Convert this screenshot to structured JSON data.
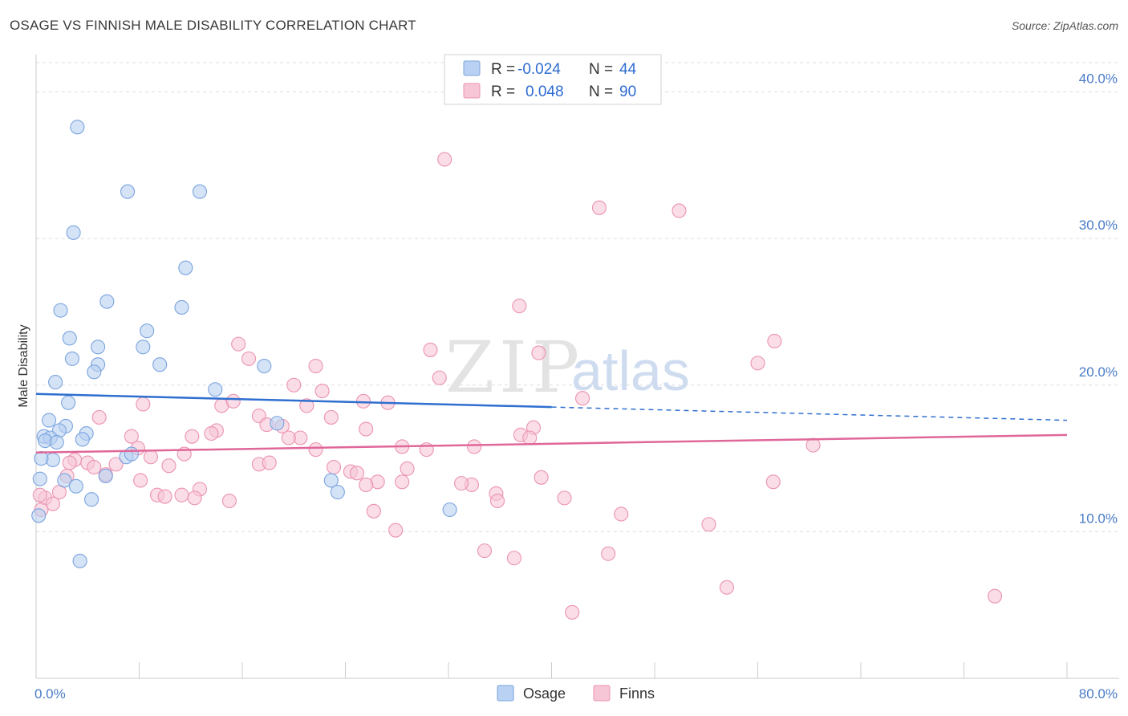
{
  "header": {
    "title": "OSAGE VS FINNISH MALE DISABILITY CORRELATION CHART",
    "source": "Source: ZipAtlas.com"
  },
  "watermark": {
    "zip": "ZIP",
    "atlas": "atlas"
  },
  "legend_box": {
    "rows": [
      {
        "r_label": "R =",
        "r_value": "-0.024",
        "n_label": "N =",
        "n_value": "44"
      },
      {
        "r_label": "R =",
        "r_value": "0.048",
        "n_label": "N =",
        "n_value": "90"
      }
    ]
  },
  "colors": {
    "osage_fill": "#b9d1f2",
    "osage_stroke": "#7aa4de",
    "osage_line": "#2f6fcf",
    "finns_fill": "#f7c6d6",
    "finns_stroke": "#eb93b1",
    "finns_line": "#e0679a",
    "tick_label": "#4a7cc7",
    "grid": "#dddddd"
  },
  "chart_data": {
    "type": "scatter",
    "title": "OSAGE VS FINNISH MALE DISABILITY CORRELATION CHART",
    "xlabel": "",
    "ylabel": "Male Disability",
    "xlim": [
      0,
      80
    ],
    "ylim": [
      0,
      42
    ],
    "x_tick_labels": [
      "0.0%",
      "80.0%"
    ],
    "y_ticks": [
      10,
      20,
      30,
      40
    ],
    "y_tick_labels": [
      "10.0%",
      "20.0%",
      "30.0%",
      "40.0%"
    ],
    "legend": "bottom-center",
    "grid": true,
    "series": [
      {
        "name": "Osage",
        "r": -0.024,
        "n": 44,
        "trend": {
          "x0": 0,
          "y0": 19.4,
          "x1": 40,
          "y1": 18.5,
          "dash_to_x": 80,
          "dash_to_y": 17.6
        },
        "points": [
          [
            3.2,
            37.6
          ],
          [
            7.1,
            33.2
          ],
          [
            12.7,
            33.2
          ],
          [
            2.9,
            30.4
          ],
          [
            11.6,
            28.0
          ],
          [
            5.5,
            25.7
          ],
          [
            11.3,
            25.3
          ],
          [
            1.9,
            25.1
          ],
          [
            8.6,
            23.7
          ],
          [
            2.6,
            23.2
          ],
          [
            4.8,
            22.6
          ],
          [
            8.3,
            22.6
          ],
          [
            2.8,
            21.8
          ],
          [
            4.8,
            21.4
          ],
          [
            9.6,
            21.4
          ],
          [
            4.5,
            20.9
          ],
          [
            17.7,
            21.3
          ],
          [
            1.5,
            20.2
          ],
          [
            13.9,
            19.7
          ],
          [
            2.5,
            18.8
          ],
          [
            1.0,
            17.6
          ],
          [
            18.7,
            17.4
          ],
          [
            2.3,
            17.2
          ],
          [
            1.8,
            16.9
          ],
          [
            3.9,
            16.7
          ],
          [
            0.6,
            16.5
          ],
          [
            1.1,
            16.4
          ],
          [
            0.7,
            16.2
          ],
          [
            1.6,
            16.1
          ],
          [
            3.6,
            16.3
          ],
          [
            7.0,
            15.1
          ],
          [
            7.4,
            15.3
          ],
          [
            1.3,
            14.9
          ],
          [
            0.4,
            15.0
          ],
          [
            5.4,
            13.8
          ],
          [
            2.2,
            13.5
          ],
          [
            0.3,
            13.6
          ],
          [
            22.9,
            13.5
          ],
          [
            3.1,
            13.1
          ],
          [
            23.4,
            12.7
          ],
          [
            4.3,
            12.2
          ],
          [
            32.1,
            11.5
          ],
          [
            0.2,
            11.1
          ],
          [
            3.4,
            8.0
          ]
        ]
      },
      {
        "name": "Finns",
        "r": 0.048,
        "n": 90,
        "trend": {
          "x0": 0,
          "y0": 15.4,
          "x1": 80,
          "y1": 16.6
        },
        "points": [
          [
            31.7,
            35.4
          ],
          [
            43.7,
            32.1
          ],
          [
            49.9,
            31.9
          ],
          [
            37.5,
            25.4
          ],
          [
            57.3,
            23.0
          ],
          [
            15.7,
            22.8
          ],
          [
            30.6,
            22.4
          ],
          [
            39.0,
            22.2
          ],
          [
            16.5,
            21.8
          ],
          [
            56.0,
            21.5
          ],
          [
            21.7,
            21.3
          ],
          [
            31.3,
            20.5
          ],
          [
            20.0,
            20.0
          ],
          [
            22.2,
            19.6
          ],
          [
            42.4,
            19.1
          ],
          [
            8.3,
            18.7
          ],
          [
            14.4,
            18.6
          ],
          [
            15.3,
            18.9
          ],
          [
            25.4,
            18.9
          ],
          [
            27.3,
            18.8
          ],
          [
            21.0,
            18.6
          ],
          [
            4.9,
            17.8
          ],
          [
            17.3,
            17.9
          ],
          [
            22.9,
            17.8
          ],
          [
            17.9,
            17.3
          ],
          [
            19.1,
            17.2
          ],
          [
            25.6,
            17.0
          ],
          [
            38.6,
            17.1
          ],
          [
            14.0,
            16.9
          ],
          [
            13.6,
            16.7
          ],
          [
            7.4,
            16.5
          ],
          [
            12.1,
            16.5
          ],
          [
            20.5,
            16.4
          ],
          [
            19.6,
            16.4
          ],
          [
            37.6,
            16.6
          ],
          [
            38.3,
            16.4
          ],
          [
            60.3,
            15.9
          ],
          [
            7.9,
            15.7
          ],
          [
            21.7,
            15.6
          ],
          [
            28.4,
            15.8
          ],
          [
            30.3,
            15.6
          ],
          [
            34.0,
            15.8
          ],
          [
            11.5,
            15.3
          ],
          [
            3.0,
            14.9
          ],
          [
            8.9,
            15.1
          ],
          [
            2.6,
            14.7
          ],
          [
            4.0,
            14.7
          ],
          [
            6.2,
            14.6
          ],
          [
            17.3,
            14.6
          ],
          [
            18.1,
            14.7
          ],
          [
            10.3,
            14.5
          ],
          [
            4.5,
            14.4
          ],
          [
            23.1,
            14.4
          ],
          [
            28.8,
            14.3
          ],
          [
            24.4,
            14.1
          ],
          [
            24.9,
            14.0
          ],
          [
            2.4,
            13.8
          ],
          [
            39.2,
            13.7
          ],
          [
            5.4,
            13.9
          ],
          [
            8.1,
            13.5
          ],
          [
            26.5,
            13.4
          ],
          [
            28.4,
            13.4
          ],
          [
            33.8,
            13.2
          ],
          [
            33.0,
            13.3
          ],
          [
            25.6,
            13.2
          ],
          [
            57.2,
            13.4
          ],
          [
            12.7,
            12.9
          ],
          [
            1.8,
            12.7
          ],
          [
            9.4,
            12.5
          ],
          [
            10.0,
            12.4
          ],
          [
            11.3,
            12.5
          ],
          [
            12.3,
            12.3
          ],
          [
            35.7,
            12.6
          ],
          [
            41.0,
            12.3
          ],
          [
            0.7,
            12.3
          ],
          [
            35.8,
            12.1
          ],
          [
            15.0,
            12.1
          ],
          [
            1.3,
            11.9
          ],
          [
            0.4,
            11.5
          ],
          [
            26.2,
            11.4
          ],
          [
            45.4,
            11.2
          ],
          [
            52.2,
            10.5
          ],
          [
            27.9,
            10.1
          ],
          [
            34.8,
            8.7
          ],
          [
            37.1,
            8.2
          ],
          [
            44.4,
            8.5
          ],
          [
            53.6,
            6.2
          ],
          [
            74.4,
            5.6
          ],
          [
            41.6,
            4.5
          ],
          [
            0.3,
            12.5
          ]
        ]
      }
    ]
  }
}
